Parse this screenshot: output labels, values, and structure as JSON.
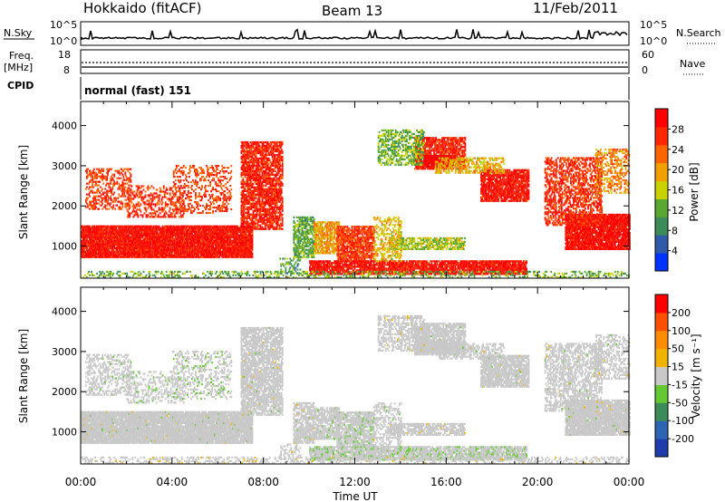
{
  "header": {
    "station": "Hokkaido (fitACF)",
    "beam": "Beam 13",
    "date": "11/Feb/2011"
  },
  "panels": {
    "nsky": {
      "label": "N.Sky",
      "right_label": "N.Search",
      "ticks_left": [
        "10^5",
        "10^0"
      ],
      "ticks_right": [
        "10^5",
        "10^0"
      ]
    },
    "freq": {
      "label": "Freq.",
      "unit": "[MHz]",
      "ticks_left": [
        "18",
        "8"
      ],
      "right_label": "Nave",
      "ticks_right": [
        "60",
        "0"
      ]
    },
    "cpid": {
      "label": "CPID",
      "value": "normal (fast) 151"
    }
  },
  "colors": {
    "power": [
      "#0033ff",
      "#2e5aa8",
      "#3c8c5a",
      "#5aa832",
      "#c8d200",
      "#f0a000",
      "#ff6400",
      "#ff2800",
      "#ff0000"
    ],
    "velocity": [
      "#1e3caa",
      "#2e64b4",
      "#3c8c5a",
      "#64c832",
      "#c8c8c8",
      "#f0b400",
      "#ff8c00",
      "#ff5000",
      "#ff0000"
    ]
  },
  "chart_data": [
    {
      "type": "heatmap",
      "name": "Power",
      "xlabel": "Time UT",
      "ylabel": "Slant Range [km]",
      "x_ticks": [
        "00:00",
        "04:00",
        "08:00",
        "12:00",
        "16:00",
        "20:00",
        "00:00"
      ],
      "y_ticks": [
        1000,
        2000,
        3000,
        4000
      ],
      "xlim_hours": [
        0,
        24
      ],
      "ylim_km": [
        200,
        4600
      ],
      "colorbar_label": "Power [dB]",
      "colorbar_ticks": [
        "28",
        "24",
        "20",
        "16",
        "12",
        "8",
        "4"
      ],
      "colorbar_range": [
        0,
        30
      ]
    },
    {
      "type": "heatmap",
      "name": "Velocity",
      "xlabel": "Time UT",
      "ylabel": "Slant Range [km]",
      "x_ticks": [
        "00:00",
        "04:00",
        "08:00",
        "12:00",
        "16:00",
        "20:00",
        "00:00"
      ],
      "y_ticks": [
        1000,
        2000,
        3000,
        4000
      ],
      "xlim_hours": [
        0,
        24
      ],
      "ylim_km": [
        200,
        4600
      ],
      "colorbar_label": "Velocity [m s⁻¹]",
      "colorbar_ticks": [
        "200",
        "100",
        "50",
        "15",
        "-15",
        "-50",
        "-100",
        "-200"
      ],
      "colorbar_range": [
        -250,
        250
      ]
    }
  ],
  "regions": [
    {
      "t0": 0.0,
      "t1": 7.5,
      "r0": 700,
      "r1": 1500,
      "pow": 27,
      "vel": 0,
      "dens": 0.9
    },
    {
      "t0": 0.2,
      "t1": 2.2,
      "r0": 1900,
      "r1": 2900,
      "pow": 24,
      "vel": -10,
      "dens": 0.35
    },
    {
      "t0": 2.0,
      "t1": 4.5,
      "r0": 1700,
      "r1": 2500,
      "pow": 25,
      "vel": -20,
      "dens": 0.3
    },
    {
      "t0": 4.0,
      "t1": 6.6,
      "r0": 1800,
      "r1": 3000,
      "pow": 24,
      "vel": -30,
      "dens": 0.25
    },
    {
      "t0": 7.0,
      "t1": 8.8,
      "r0": 1400,
      "r1": 3600,
      "pow": 26,
      "vel": 0,
      "dens": 0.65
    },
    {
      "t0": 8.7,
      "t1": 9.6,
      "r0": 300,
      "r1": 700,
      "pow": 10,
      "vel": 20,
      "dens": 0.3
    },
    {
      "t0": 9.3,
      "t1": 10.2,
      "r0": 700,
      "r1": 1700,
      "pow": 11,
      "vel": 0,
      "dens": 0.6
    },
    {
      "t0": 10.2,
      "t1": 11.3,
      "r0": 800,
      "r1": 1600,
      "pow": 19,
      "vel": -5,
      "dens": 0.65
    },
    {
      "t0": 11.2,
      "t1": 12.8,
      "r0": 600,
      "r1": 1500,
      "pow": 24,
      "vel": -20,
      "dens": 0.7
    },
    {
      "t0": 10.0,
      "t1": 19.5,
      "r0": 280,
      "r1": 600,
      "pow": 27,
      "vel": -40,
      "dens": 0.75
    },
    {
      "t0": 13.5,
      "t1": 16.8,
      "r0": 900,
      "r1": 1200,
      "pow": 14,
      "vel": 10,
      "dens": 0.6
    },
    {
      "t0": 12.8,
      "t1": 14.0,
      "r0": 600,
      "r1": 1700,
      "pow": 17,
      "vel": 0,
      "dens": 0.35
    },
    {
      "t0": 14.6,
      "t1": 16.8,
      "r0": 2900,
      "r1": 3700,
      "pow": 26,
      "vel": 0,
      "dens": 0.7
    },
    {
      "t0": 15.0,
      "t1": 16.2,
      "r0": 2950,
      "r1": 3250,
      "pow": 30,
      "vel": 0,
      "dens": 0.8
    },
    {
      "t0": 13.0,
      "t1": 15.0,
      "r0": 3000,
      "r1": 3900,
      "pow": 12,
      "vel": 5,
      "dens": 0.45
    },
    {
      "t0": 17.5,
      "t1": 19.6,
      "r0": 2100,
      "r1": 2900,
      "pow": 27,
      "vel": 0,
      "dens": 0.75
    },
    {
      "t0": 15.5,
      "t1": 18.5,
      "r0": 2800,
      "r1": 3200,
      "pow": 17,
      "vel": 0,
      "dens": 0.45
    },
    {
      "t0": 21.2,
      "t1": 24.0,
      "r0": 900,
      "r1": 1800,
      "pow": 28,
      "vel": 0,
      "dens": 0.85
    },
    {
      "t0": 20.3,
      "t1": 22.8,
      "r0": 1500,
      "r1": 3200,
      "pow": 25,
      "vel": 0,
      "dens": 0.45
    },
    {
      "t0": 22.5,
      "t1": 24.0,
      "r0": 2300,
      "r1": 3400,
      "pow": 20,
      "vel": 0,
      "dens": 0.35
    },
    {
      "t0": 0.0,
      "t1": 24.0,
      "r0": 200,
      "r1": 350,
      "pow": 12,
      "vel": 20,
      "dens": 0.25
    }
  ]
}
